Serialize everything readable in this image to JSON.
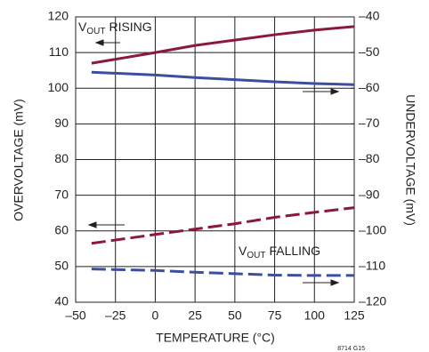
{
  "chart_data": {
    "type": "line",
    "x_label": "TEMPERATURE (°C)",
    "y_label": "OVERVOLTAGE (mV)",
    "y2_label": "UNDERVOLTAGE (mV)",
    "note": "8714 G15",
    "x": [
      -40,
      0,
      25,
      50,
      75,
      100,
      125
    ],
    "series": [
      {
        "color": "#8b1a3a",
        "style": "solid",
        "axis": "y",
        "values": [
          107,
          110,
          112,
          113.5,
          115,
          116.3,
          117.3
        ]
      },
      {
        "color": "#8b1a3a",
        "style": "dashed",
        "axis": "y",
        "values": [
          56.5,
          59,
          60.5,
          62,
          63.8,
          65.2,
          66.5
        ]
      },
      {
        "color": "#3b4ea0",
        "style": "solid",
        "axis": "y2",
        "values": [
          -55.5,
          -56.3,
          -57,
          -57.6,
          -58.2,
          -58.7,
          -59
        ]
      },
      {
        "color": "#3b4ea0",
        "style": "dashed",
        "axis": "y2",
        "values": [
          -110.7,
          -111.1,
          -111.6,
          -112,
          -112.4,
          -112.5,
          -112.5
        ]
      }
    ],
    "annotations": [
      {
        "prefix": "V",
        "sub": "OUT",
        "text": "RISING"
      },
      {
        "prefix": "V",
        "sub": "OUT",
        "text": "FALLING"
      }
    ],
    "xlim": [
      -50,
      125
    ],
    "xticks": [
      {
        "value": -50,
        "label": "–50"
      },
      {
        "value": -25,
        "label": "–25"
      },
      0,
      25,
      50,
      75,
      100,
      125
    ],
    "ylim": [
      40,
      120
    ],
    "yticks": [
      40,
      50,
      60,
      70,
      80,
      90,
      100,
      110,
      120
    ],
    "y2lim": [
      -120,
      -40
    ],
    "y2ticks": [
      {
        "value": -120,
        "label": "–120"
      },
      {
        "value": -110,
        "label": "–110"
      },
      {
        "value": -100,
        "label": "–100"
      },
      {
        "value": -90,
        "label": "–90"
      },
      {
        "value": -80,
        "label": "–80"
      },
      {
        "value": -70,
        "label": "–70"
      },
      {
        "value": -60,
        "label": "–60"
      },
      {
        "value": -50,
        "label": "–50"
      },
      {
        "value": -40,
        "label": "–40"
      }
    ],
    "grid": true
  }
}
